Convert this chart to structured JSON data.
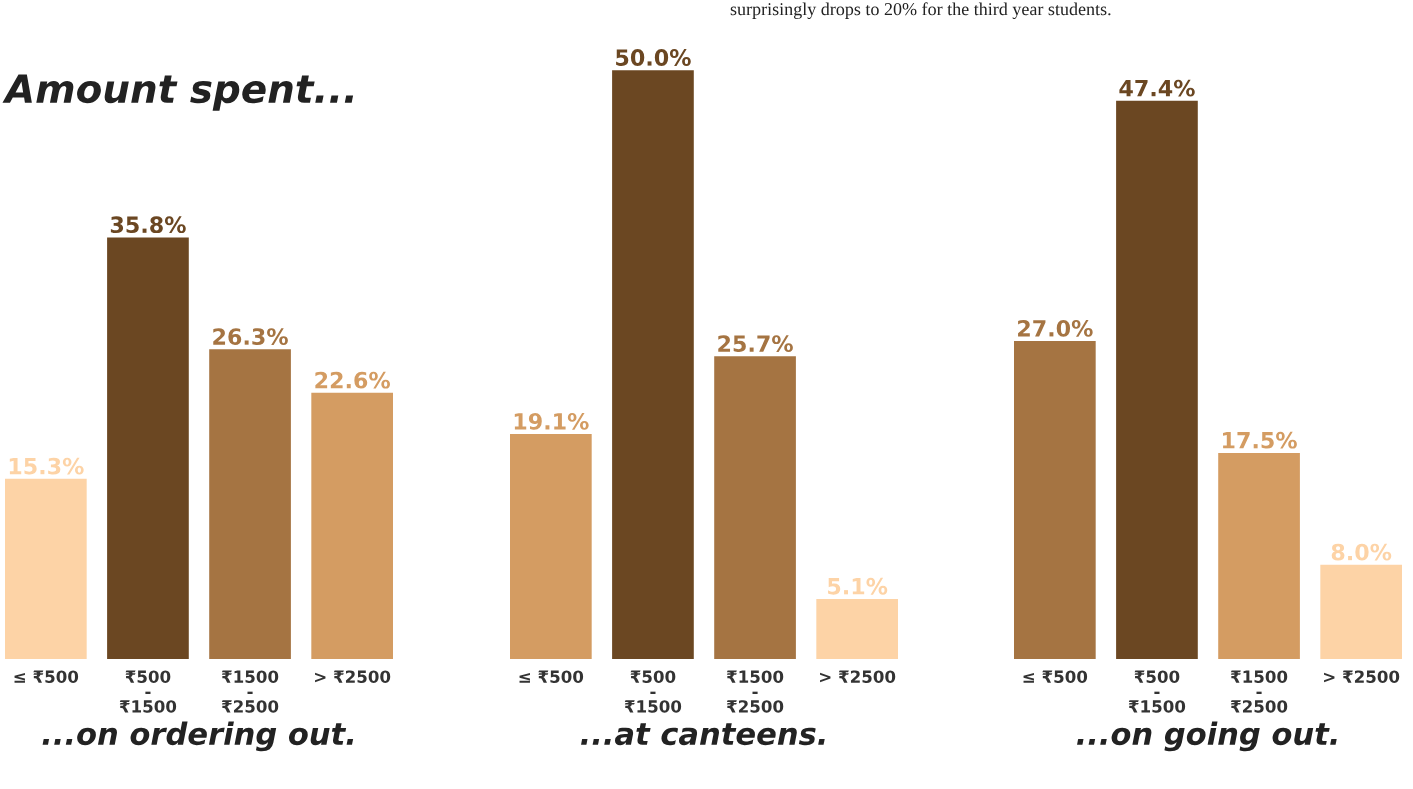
{
  "chart_data": [
    {
      "type": "bar",
      "title": "Amount spent...",
      "xlabel": "...on ordering out.",
      "categories": [
        "≤ ₹500",
        "₹500\n-\n₹1500",
        "₹1500\n-\n₹2500",
        "> ₹2500"
      ],
      "values": [
        15.3,
        35.8,
        26.3,
        22.6
      ],
      "value_labels": [
        "15.3%",
        "35.8%",
        "26.3%",
        "22.6%"
      ],
      "colors": [
        "#fdd3a6",
        "#6b4722",
        "#a57442",
        "#d49c62"
      ]
    },
    {
      "type": "bar",
      "xlabel": "...at canteens.",
      "annotations": [
        "surprisingly drops to 20% for the third year students."
      ],
      "categories": [
        "≤ ₹500",
        "₹500\n-\n₹1500",
        "₹1500\n-\n₹2500",
        "> ₹2500"
      ],
      "values": [
        19.1,
        50.0,
        25.7,
        5.1
      ],
      "value_labels": [
        "19.1%",
        "50.0%",
        "25.7%",
        "5.1%"
      ],
      "colors": [
        "#d49c62",
        "#6b4722",
        "#a57442",
        "#fdd3a6"
      ]
    },
    {
      "type": "bar",
      "xlabel": "...on going out.",
      "categories": [
        "≤ ₹500",
        "₹500\n-\n₹1500",
        "₹1500\n-\n₹2500",
        "> ₹2500"
      ],
      "values": [
        27.0,
        47.4,
        17.5,
        8.0
      ],
      "value_labels": [
        "27.0%",
        "47.4%",
        "17.5%",
        "8.0%"
      ],
      "colors": [
        "#a57442",
        "#6b4722",
        "#d49c62",
        "#fdd3a6"
      ]
    }
  ]
}
